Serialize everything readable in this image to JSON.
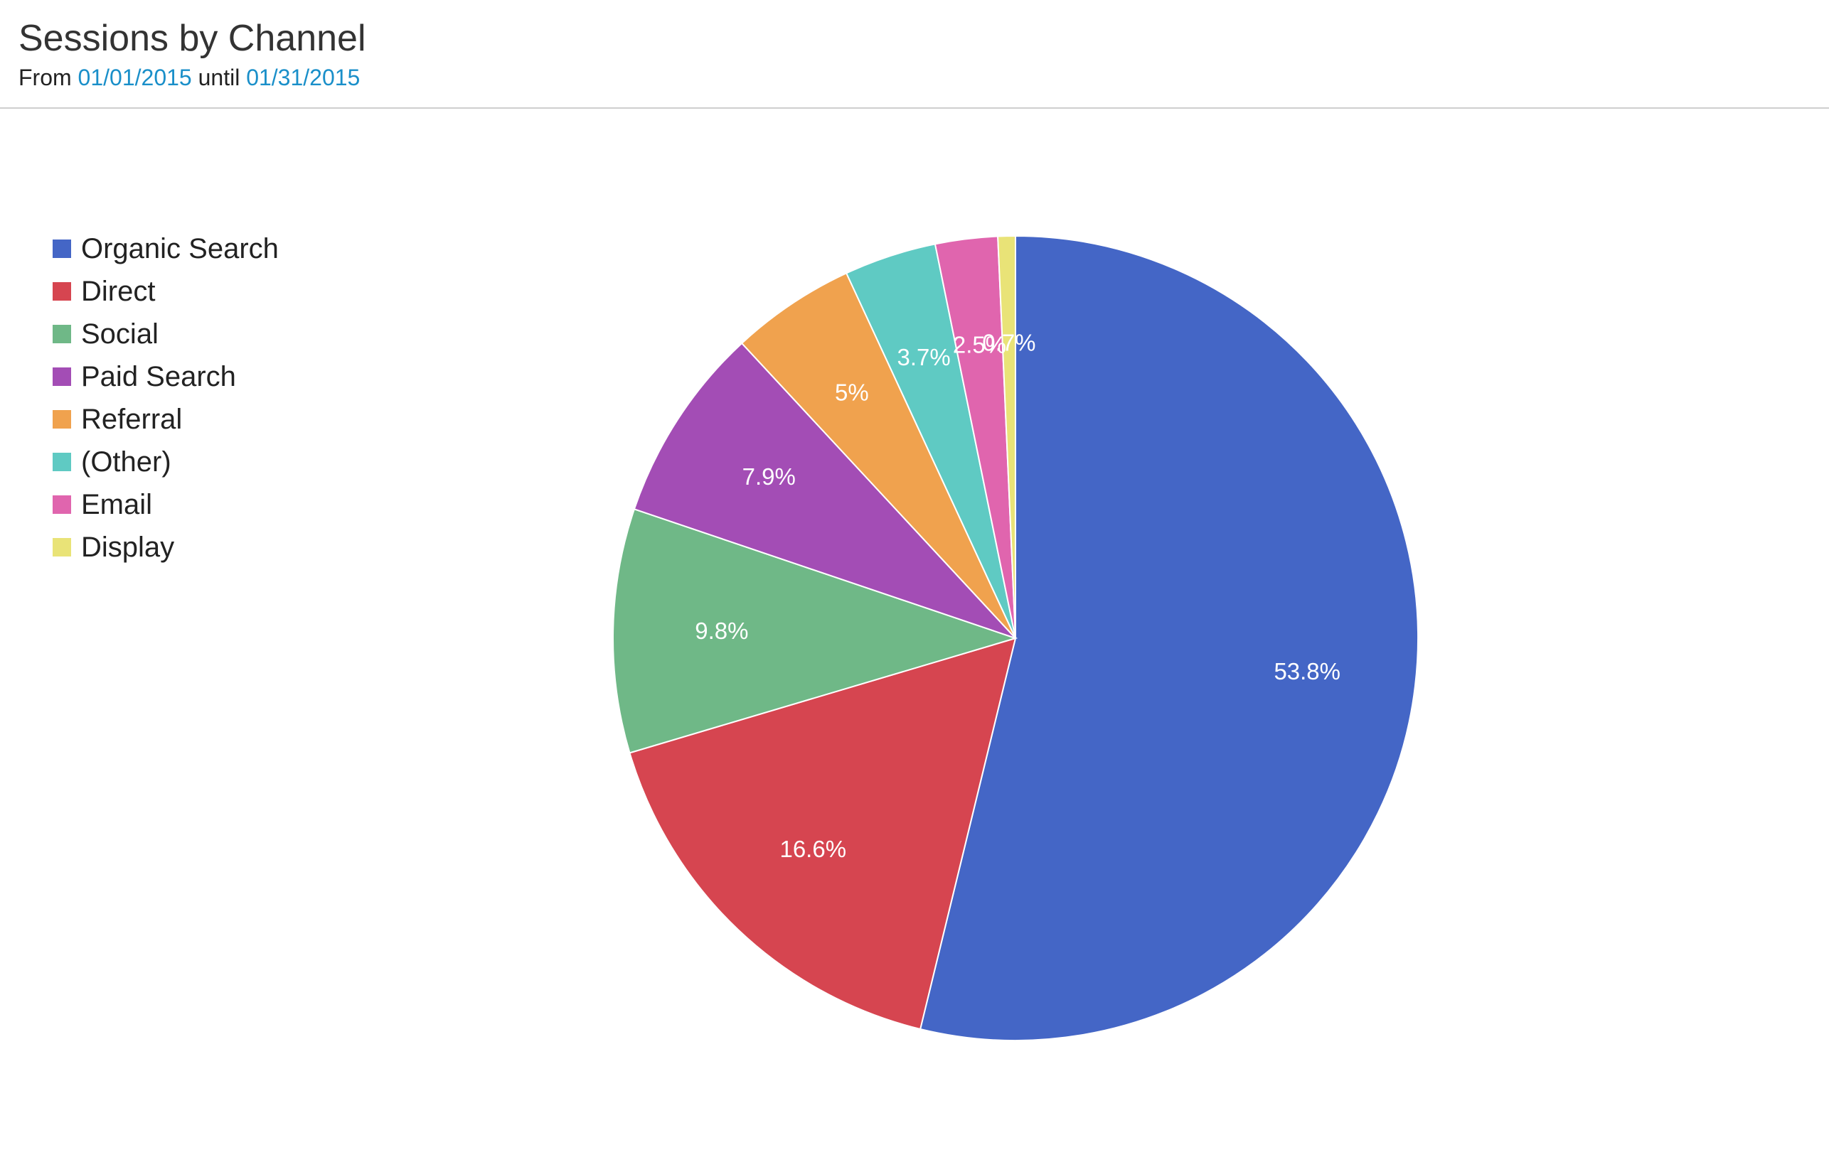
{
  "header": {
    "title": "Sessions by Channel",
    "from_label": "From",
    "start_date": "01/01/2015",
    "until_label": "until",
    "end_date": "01/31/2015"
  },
  "colors": {
    "date_link": "#1a8fc9"
  },
  "chart_data": {
    "type": "pie",
    "title": "Sessions by Channel",
    "legend_position": "left",
    "slices": [
      {
        "label": "Organic Search",
        "value": 53.8,
        "display": "53.8%",
        "color": "#4466c6"
      },
      {
        "label": "Direct",
        "value": 16.6,
        "display": "16.6%",
        "color": "#d64550"
      },
      {
        "label": "Social",
        "value": 9.8,
        "display": "9.8%",
        "color": "#6fb887"
      },
      {
        "label": "Paid Search",
        "value": 7.9,
        "display": "7.9%",
        "color": "#a34db5"
      },
      {
        "label": "Referral",
        "value": 5,
        "display": "5%",
        "color": "#f0a24e"
      },
      {
        "label": "(Other)",
        "value": 3.7,
        "display": "3.7%",
        "color": "#5fcac3"
      },
      {
        "label": "Email",
        "value": 2.5,
        "display": "2.5%",
        "color": "#e065ae"
      },
      {
        "label": "Display",
        "value": 0.7,
        "display": "0.7%",
        "color": "#e9e377"
      }
    ]
  }
}
